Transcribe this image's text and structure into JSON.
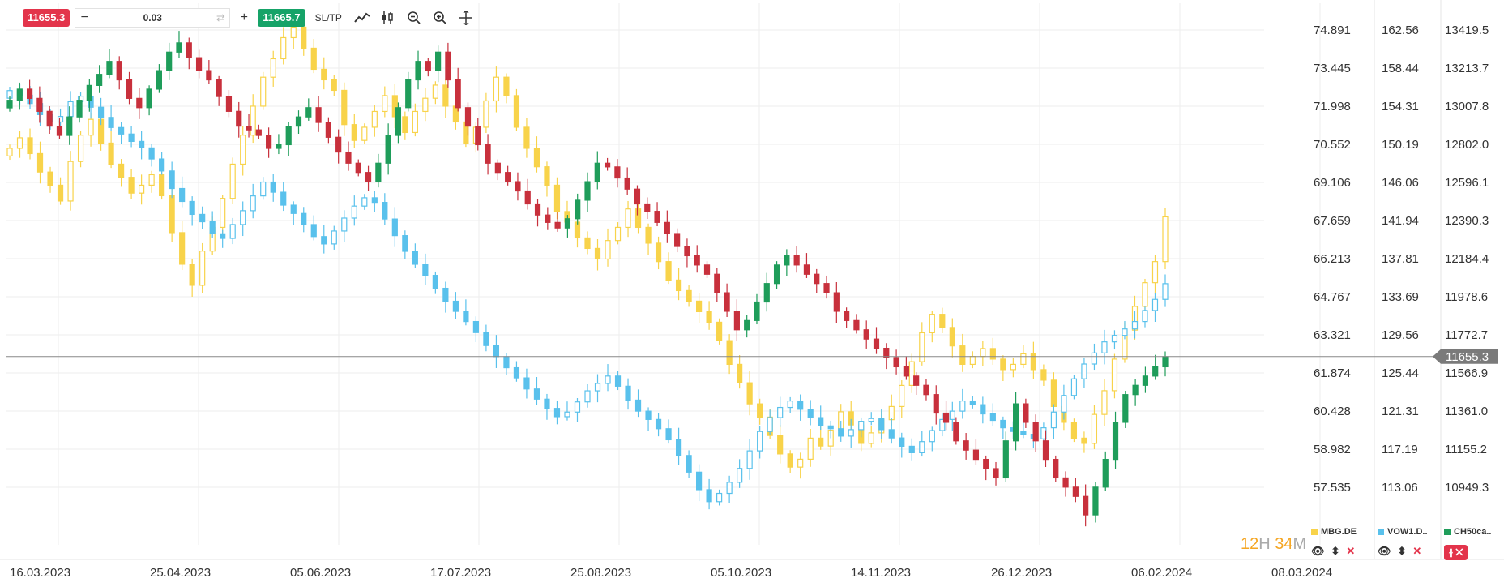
{
  "toolbar": {
    "sell_price": "11655.3",
    "quantity": "0.03",
    "minus": "−",
    "plus": "+",
    "buy_price": "11665.7",
    "sltp": "SL/TP"
  },
  "timer": {
    "hours": "12",
    "h": "H",
    "minutes": "34",
    "m": "M"
  },
  "legend": [
    {
      "label": "MBG.DE",
      "color": "#f8d34a"
    },
    {
      "label": "VOW1.D..",
      "color": "#59c1ec"
    },
    {
      "label": "CH50ca..",
      "color": "#1f9d5a"
    }
  ],
  "current_price_label": "11655.3",
  "chart_data": {
    "type": "candlestick",
    "x_ticks": [
      "16.03.2023",
      "25.04.2023",
      "05.06.2023",
      "17.07.2023",
      "25.08.2023",
      "05.10.2023",
      "14.11.2023",
      "26.12.2023",
      "06.02.2024",
      "08.03.2024"
    ],
    "axes": [
      {
        "name": "MBG.DE",
        "labels": [
          "74.891",
          "73.445",
          "71.998",
          "70.552",
          "69.106",
          "67.659",
          "66.213",
          "64.767",
          "63.321",
          "61.874",
          "60.428",
          "58.982",
          "57.535"
        ]
      },
      {
        "name": "VOW1.DE",
        "labels": [
          "162.56",
          "158.44",
          "154.31",
          "150.19",
          "146.06",
          "141.94",
          "137.81",
          "133.69",
          "129.56",
          "125.44",
          "121.31",
          "117.19",
          "113.06"
        ]
      },
      {
        "name": "CH50cash",
        "labels": [
          "13419.5",
          "13213.7",
          "13007.8",
          "12802.0",
          "12596.1",
          "12390.3",
          "12184.4",
          "11978.6",
          "11772.7",
          "11566.9",
          "11361.0",
          "11155.2",
          "10949.3"
        ],
        "current": 11655.3
      }
    ],
    "series": [
      {
        "name": "MBG.DE",
        "style": "hollow",
        "color": "#f8d34a",
        "close": [
          70.4,
          70.8,
          70.2,
          69.5,
          69.0,
          68.4,
          69.9,
          70.9,
          71.5,
          70.6,
          69.8,
          69.3,
          68.7,
          69.0,
          69.4,
          68.6,
          67.2,
          66.0,
          65.2,
          66.5,
          67.4,
          68.5,
          69.8,
          70.9,
          72.0,
          73.1,
          73.8,
          74.6,
          75.0,
          74.2,
          73.4,
          73.0,
          72.6,
          71.3,
          70.7,
          71.2,
          71.8,
          72.4,
          71.6,
          71.0,
          71.8,
          72.3,
          72.8,
          72.0,
          71.4,
          70.6,
          71.2,
          72.2,
          73.1,
          72.4,
          71.2,
          70.4,
          69.7,
          69.0,
          68.0,
          67.6,
          67.0,
          66.6,
          66.2,
          66.9,
          67.4,
          68.1,
          67.4,
          66.8,
          66.1,
          65.4,
          65.0,
          64.6,
          64.2,
          63.8,
          63.1,
          62.2,
          61.5,
          60.7,
          60.2,
          59.5,
          58.8,
          58.3,
          58.6,
          59.4,
          59.1,
          59.7,
          60.4,
          59.9,
          59.2,
          59.6,
          60.1,
          60.6,
          61.4,
          62.3,
          63.4,
          64.1,
          63.6,
          62.9,
          62.2,
          62.5,
          62.8,
          62.4,
          62.0,
          62.2,
          62.6,
          62.0,
          61.6,
          60.6,
          60.0,
          59.4,
          59.2,
          60.3,
          61.2,
          62.4,
          63.5,
          64.4,
          65.3,
          66.1,
          67.8
        ]
      },
      {
        "name": "VOW1.DE",
        "style": "hollow",
        "color": "#59c1ec",
        "close": [
          156.0,
          155.5,
          154.6,
          153.4,
          152.6,
          153.2,
          154.8,
          155.4,
          154.2,
          153.1,
          152.0,
          151.3,
          150.5,
          149.8,
          148.6,
          147.3,
          145.4,
          144.0,
          142.6,
          141.8,
          140.5,
          140.0,
          141.5,
          143.0,
          144.6,
          146.1,
          145.0,
          143.6,
          142.7,
          141.5,
          140.2,
          139.4,
          140.8,
          142.2,
          143.5,
          144.4,
          143.9,
          142.1,
          140.3,
          138.6,
          137.2,
          136.0,
          134.6,
          133.2,
          132.1,
          131.0,
          129.8,
          128.4,
          127.2,
          126.0,
          124.9,
          123.7,
          122.6,
          121.6,
          120.7,
          121.2,
          122.3,
          123.5,
          124.3,
          125.1,
          124.0,
          122.5,
          121.3,
          120.4,
          119.4,
          118.2,
          116.5,
          114.7,
          112.8,
          111.5,
          112.4,
          113.6,
          115.1,
          117.0,
          119.1,
          120.6,
          121.7,
          122.4,
          121.5,
          120.6,
          119.7,
          119.4,
          118.6,
          119.3,
          120.2,
          120.5,
          119.3,
          118.4,
          117.5,
          116.8,
          118.0,
          119.2,
          120.4,
          121.3,
          122.4,
          122.0,
          121.0,
          120.3,
          119.5,
          119.1,
          118.8,
          118.3,
          119.5,
          121.2,
          123.0,
          124.8,
          126.4,
          127.6,
          128.8,
          129.5,
          130.2,
          131.0,
          132.2,
          133.4,
          135.1
        ]
      },
      {
        "name": "CH50cash",
        "style": "filled",
        "up": "#1f9d5a",
        "down": "#c8303c",
        "close": [
          13040,
          13100,
          13050,
          12980,
          12900,
          12850,
          12950,
          13040,
          13120,
          13180,
          13250,
          13150,
          13050,
          13000,
          13100,
          13200,
          13300,
          13350,
          13270,
          13200,
          13150,
          13060,
          12980,
          12900,
          12880,
          12850,
          12780,
          12800,
          12900,
          12950,
          13000,
          12920,
          12840,
          12760,
          12700,
          12650,
          12600,
          12700,
          12850,
          13000,
          13150,
          13250,
          13200,
          13300,
          13150,
          13000,
          12900,
          12800,
          12700,
          12650,
          12600,
          12550,
          12480,
          12420,
          12380,
          12350,
          12400,
          12500,
          12600,
          12700,
          12680,
          12620,
          12560,
          12480,
          12440,
          12380,
          12320,
          12250,
          12200,
          12150,
          12100,
          12000,
          11900,
          11800,
          11850,
          11950,
          12050,
          12150,
          12200,
          12150,
          12100,
          12050,
          12000,
          11900,
          11850,
          11800,
          11750,
          11700,
          11650,
          11600,
          11550,
          11500,
          11450,
          11350,
          11300,
          11200,
          11150,
          11100,
          11050,
          11000,
          11200,
          11400,
          11300,
          11200,
          11100,
          11000,
          10950,
          10900,
          10800,
          10950,
          11100,
          11300,
          11450,
          11500,
          11550,
          11600,
          11655
        ]
      }
    ]
  }
}
